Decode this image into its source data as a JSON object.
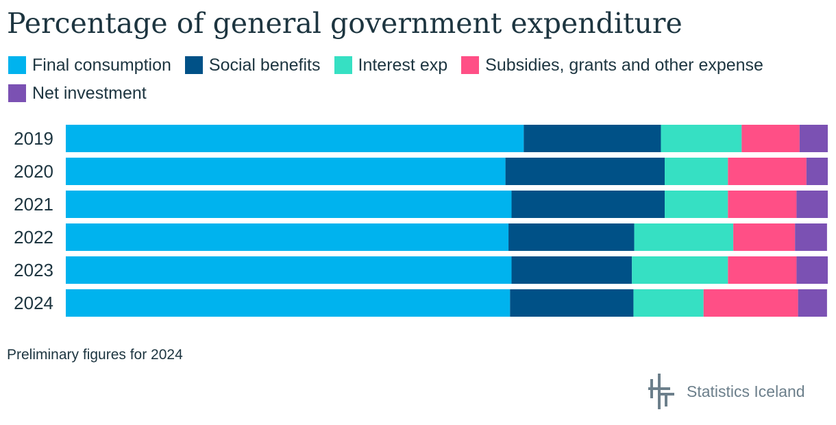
{
  "chart_data": {
    "type": "bar",
    "orientation": "horizontal",
    "stacked": true,
    "title": "Percentage of general government expenditure",
    "xlabel": "",
    "ylabel": "",
    "xlim": [
      0,
      100
    ],
    "categories": [
      "2019",
      "2020",
      "2021",
      "2022",
      "2023",
      "2024"
    ],
    "series": [
      {
        "name": "Final consumption",
        "color": "#00b3ee",
        "values": [
          60.1,
          57.7,
          58.5,
          58.1,
          58.5,
          58.3
        ]
      },
      {
        "name": "Social benefits",
        "color": "#005187",
        "values": [
          18.0,
          20.9,
          20.1,
          16.5,
          15.8,
          16.2
        ]
      },
      {
        "name": "Interest exp",
        "color": "#36e0c3",
        "values": [
          10.6,
          8.3,
          8.3,
          13.0,
          12.6,
          9.2
        ]
      },
      {
        "name": "Subsidies, grants and other expense",
        "color": "#ff4f86",
        "values": [
          7.6,
          10.3,
          9.0,
          8.1,
          9.0,
          12.4
        ]
      },
      {
        "name": "Net investment",
        "color": "#7b51b3",
        "values": [
          3.7,
          2.8,
          4.1,
          4.2,
          4.1,
          3.8
        ]
      }
    ],
    "legend_position": "top-left",
    "grid": false
  },
  "footnote": "Preliminary figures for 2024",
  "logo": {
    "text": "Statistics Iceland",
    "icon": "statistics-iceland-logo-icon",
    "color": "#6c7f8b"
  }
}
